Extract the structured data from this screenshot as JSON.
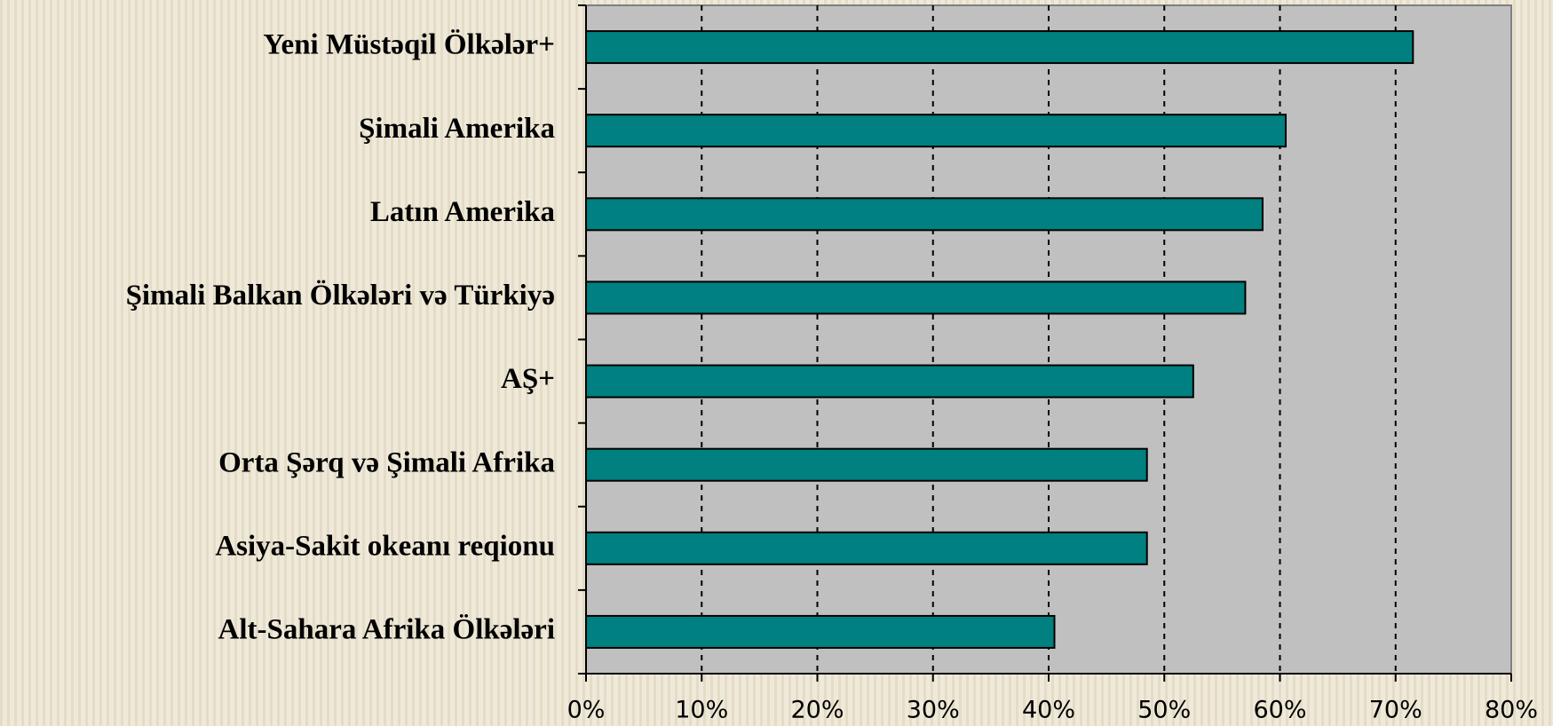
{
  "chart_data": {
    "type": "bar",
    "orientation": "horizontal",
    "categories": [
      "Yeni Müstəqil Ölkələr+",
      "Şimali Amerika",
      "Latın Amerika",
      "Şimali Balkan Ölkələri və Türkiyə",
      "AŞ+",
      "Orta Şərq və Şimali Afrika",
      "Asiya-Sakit okeanı reqionu",
      "Alt-Sahara Afrika Ölkələri"
    ],
    "values": [
      71.5,
      60.5,
      58.5,
      57,
      52.5,
      48.5,
      48.5,
      40.5
    ],
    "color": "#008080",
    "xlim": [
      0,
      80
    ],
    "xticks": [
      {
        "value": 0,
        "label": "0%"
      },
      {
        "value": 10,
        "label": "10%"
      },
      {
        "value": 20,
        "label": "20%"
      },
      {
        "value": 30,
        "label": "30%"
      },
      {
        "value": 40,
        "label": "40%"
      },
      {
        "value": 50,
        "label": "50%"
      },
      {
        "value": 60,
        "label": "60%"
      },
      {
        "value": 70,
        "label": "70%"
      },
      {
        "value": 80,
        "label": "80%"
      }
    ],
    "grid": true
  }
}
